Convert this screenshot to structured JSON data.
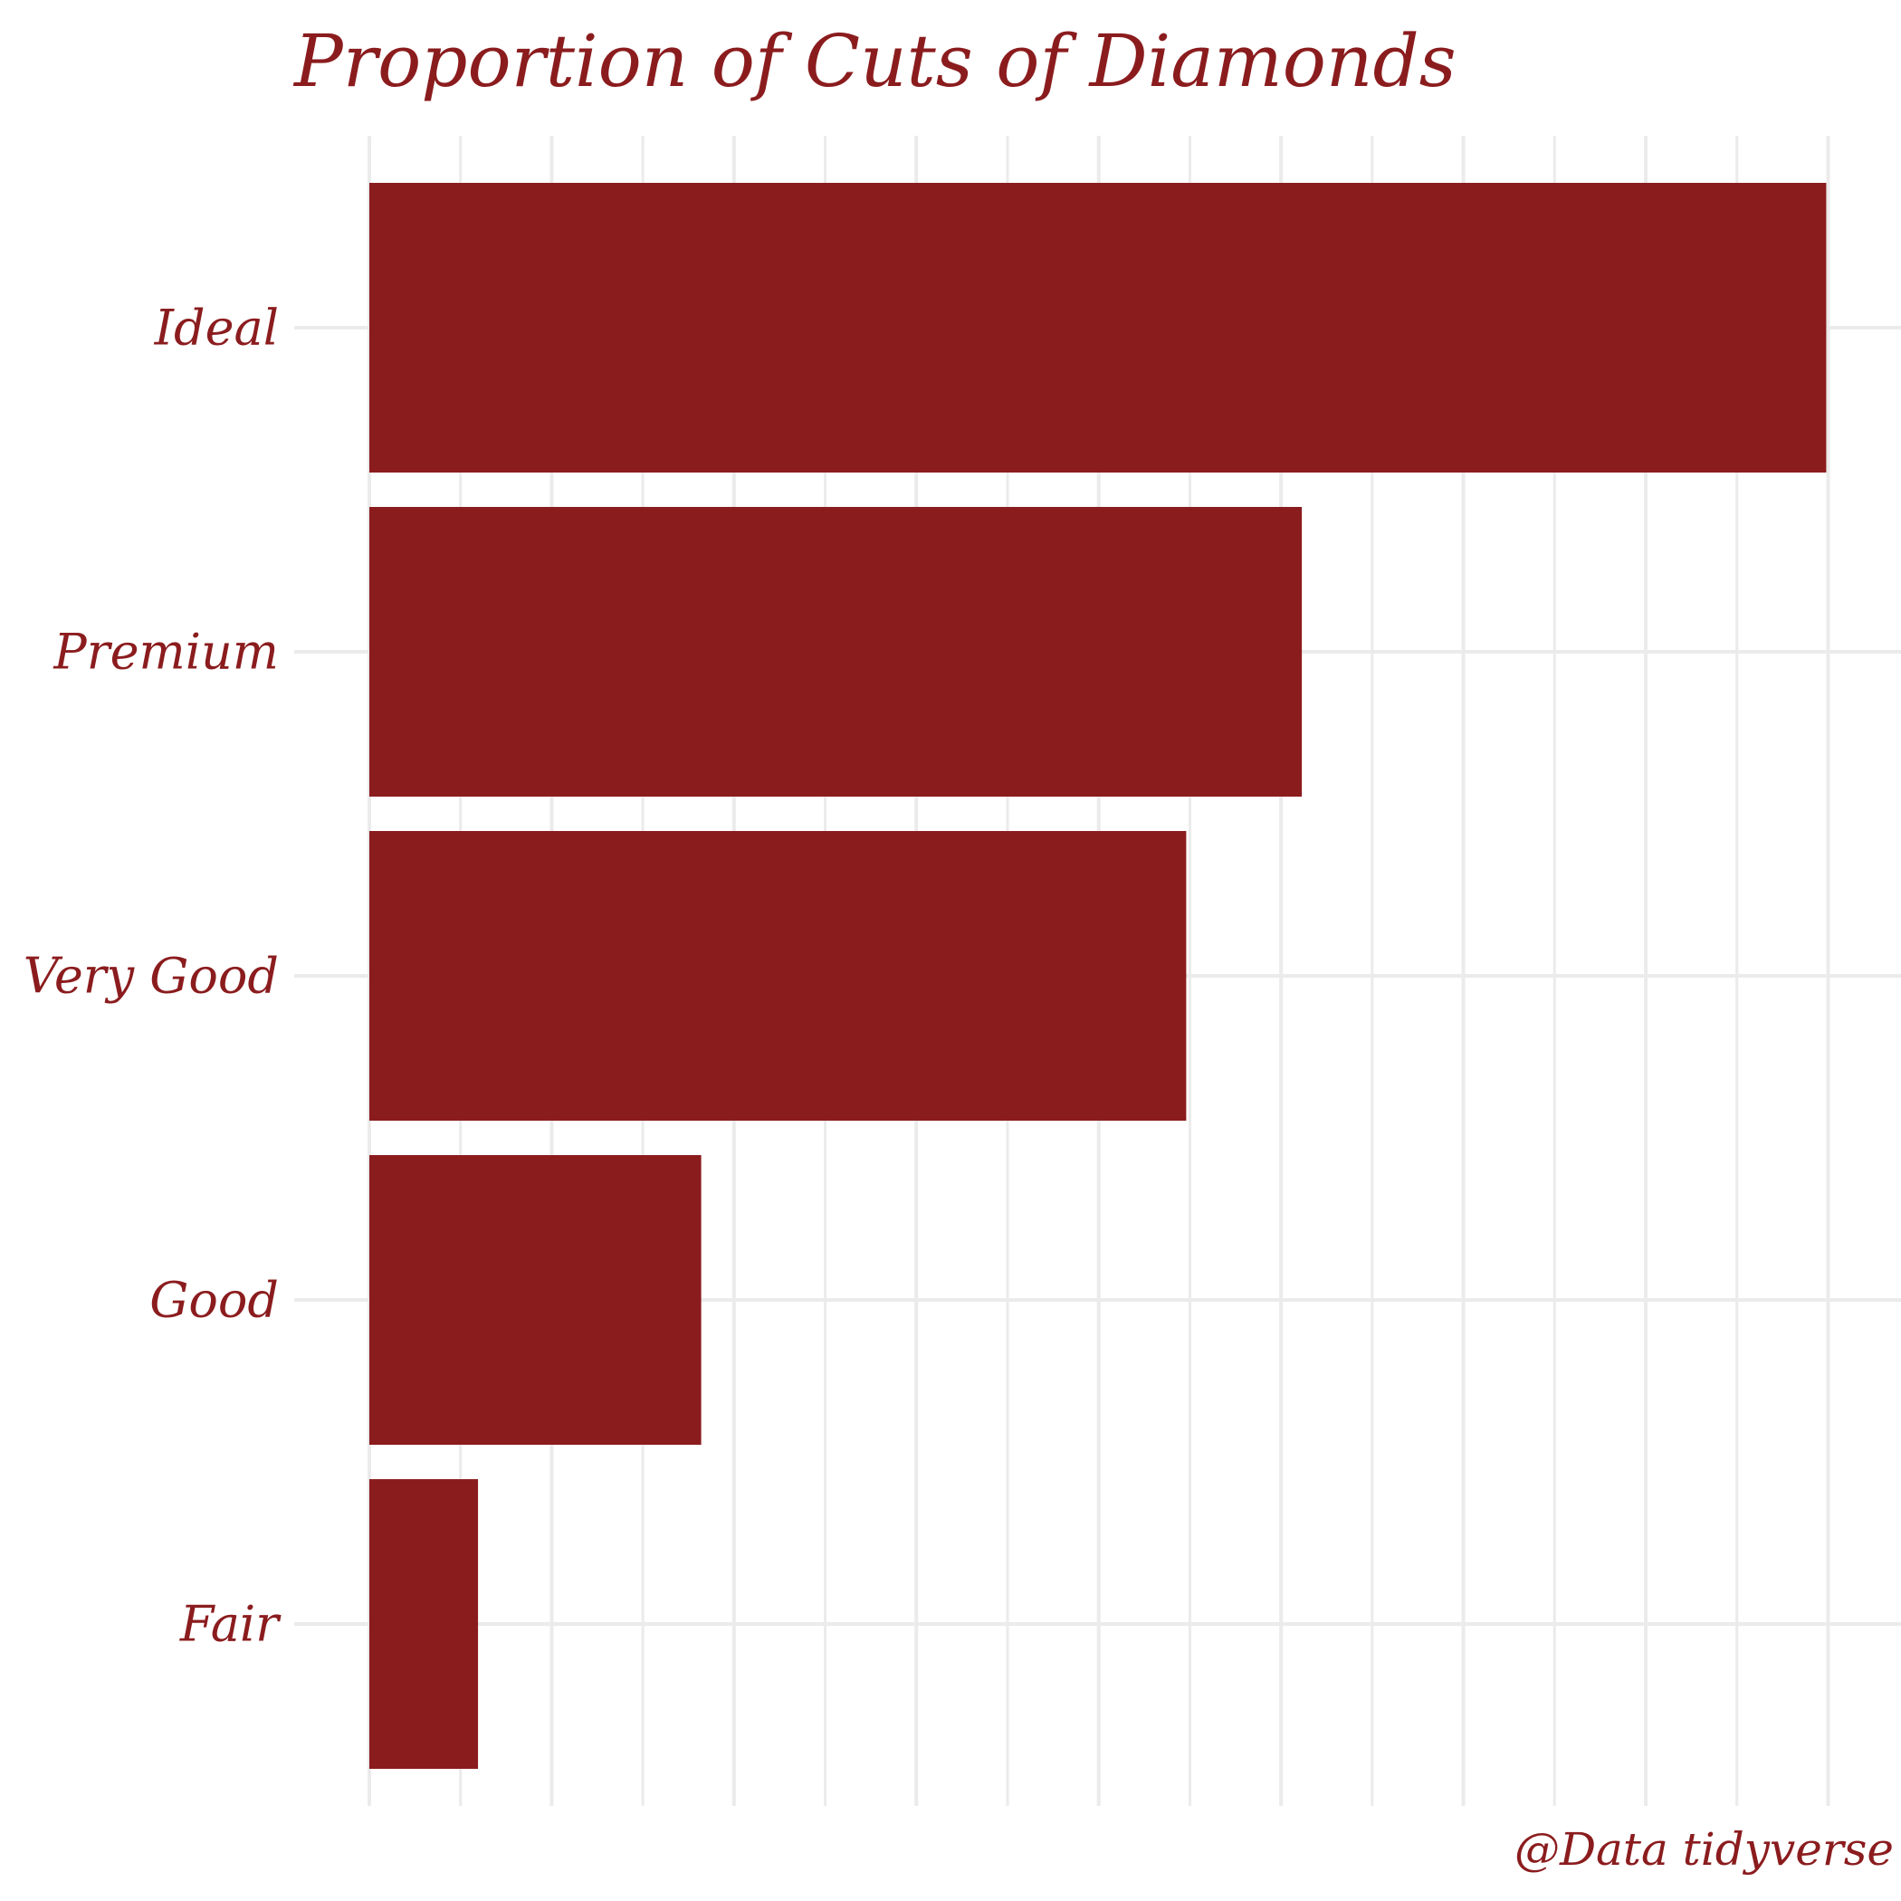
{
  "colors": {
    "bar": "#8b1c1e",
    "text": "#8b1c1e",
    "grid": "#ebebeb",
    "background": "#ffffff"
  },
  "chart_data": {
    "type": "bar",
    "orientation": "horizontal",
    "title": "Proportion of Cuts of Diamonds",
    "caption": "@Data tidyverse",
    "xlabel": "",
    "ylabel": "",
    "categories": [
      "Ideal",
      "Premium",
      "Very Good",
      "Good",
      "Fair"
    ],
    "values": [
      0.3995,
      0.2557,
      0.224,
      0.091,
      0.0298
    ],
    "xlim": [
      0,
      0.42
    ],
    "x_tick_labels_shown": false,
    "grid": true,
    "legend": "none"
  }
}
